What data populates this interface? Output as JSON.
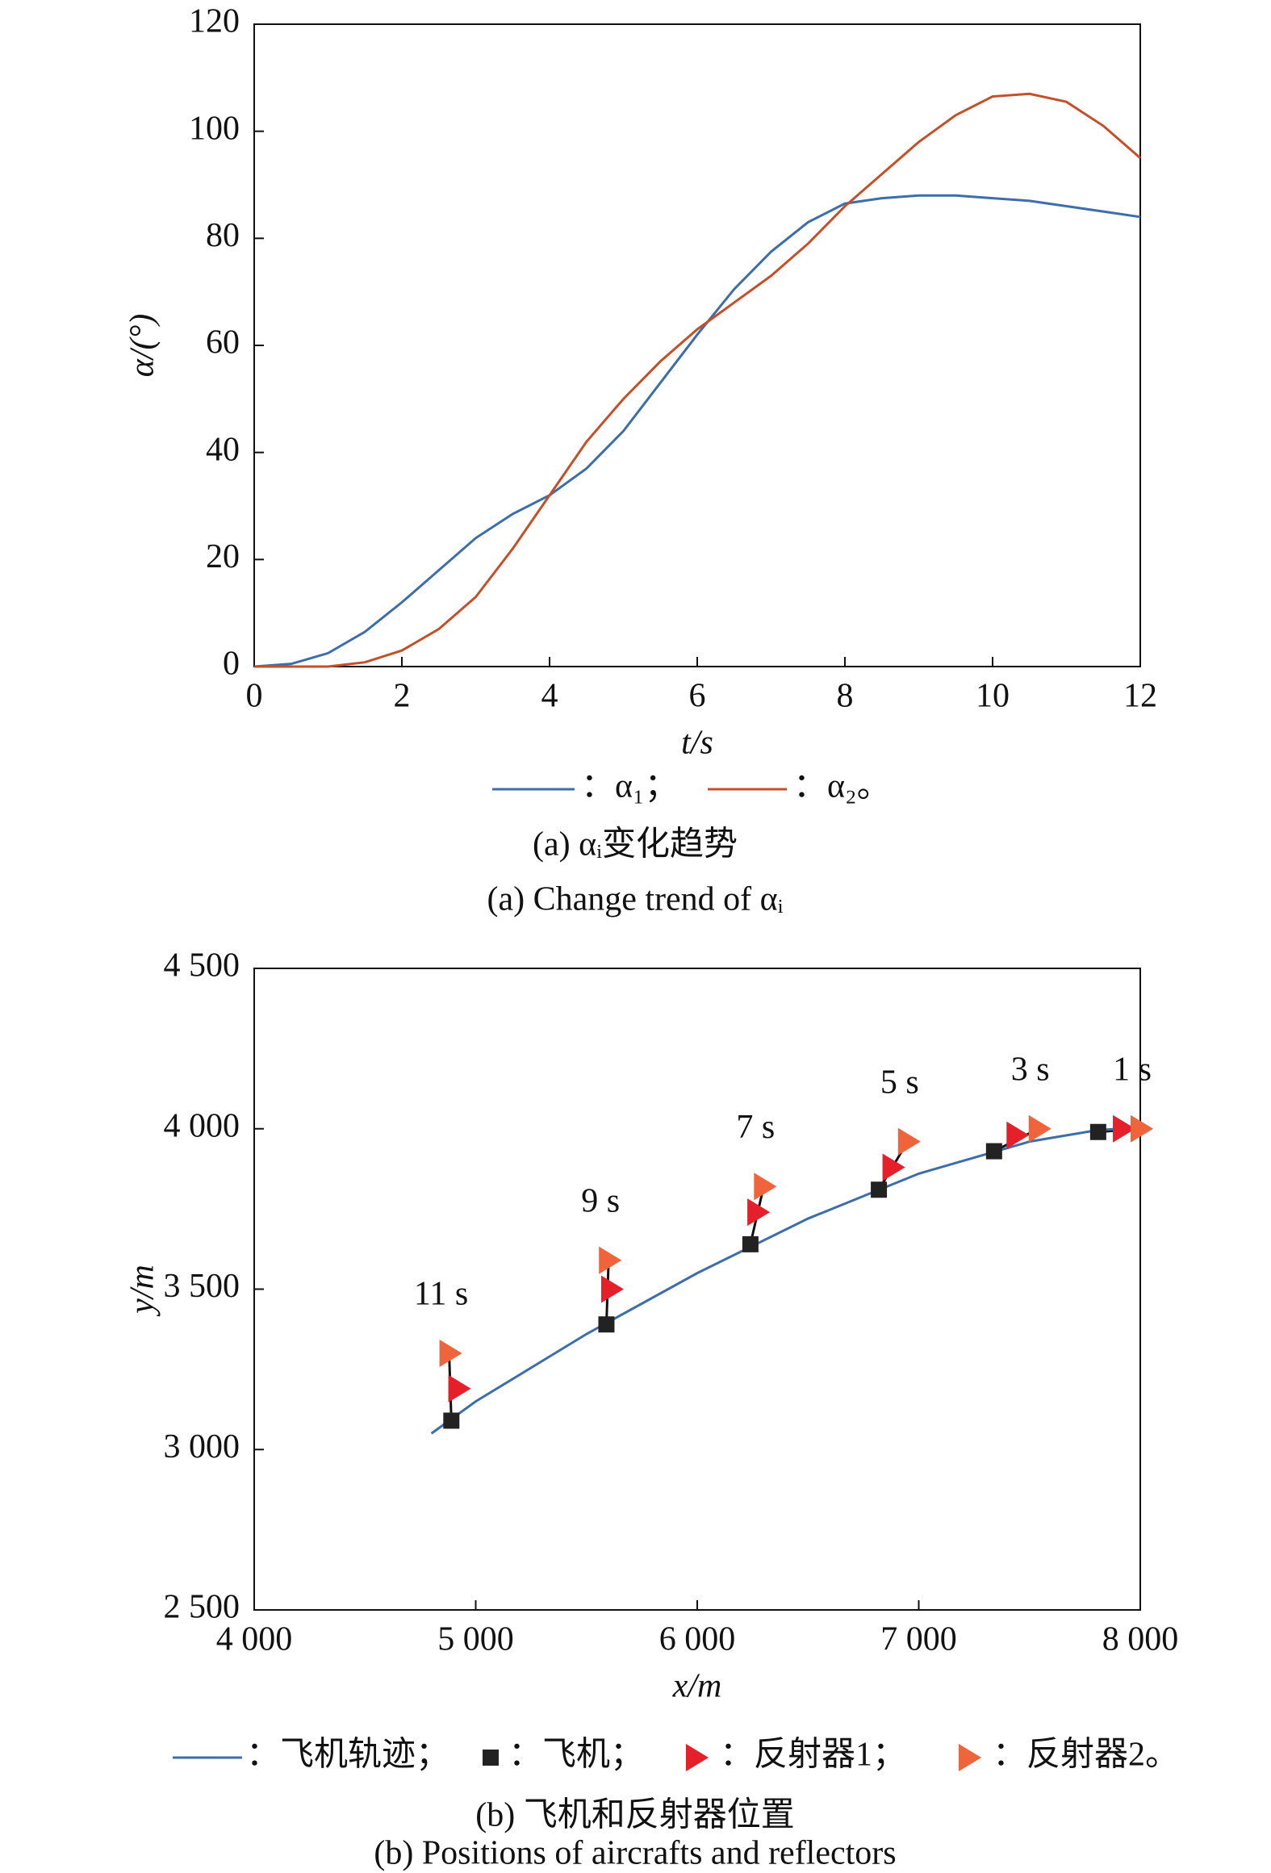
{
  "chart_data": [
    {
      "type": "line",
      "xlabel": "t/s",
      "ylabel": "α/(°)",
      "xlim": [
        0,
        12
      ],
      "xticks": [
        0,
        2,
        4,
        6,
        8,
        10,
        12
      ],
      "ylim": [
        0,
        120
      ],
      "yticks": [
        0,
        20,
        40,
        60,
        80,
        100,
        120
      ],
      "series": [
        {
          "name": "：α₁；",
          "color": "#3d6eaa",
          "x": [
            0,
            0.5,
            1,
            1.5,
            2,
            2.5,
            3,
            3.5,
            4,
            4.5,
            5,
            5.5,
            6,
            6.5,
            7,
            7.5,
            8,
            8.5,
            9,
            9.5,
            10,
            10.5,
            11,
            11.5,
            12
          ],
          "values": [
            0,
            0.5,
            2.5,
            6.5,
            12,
            18,
            24,
            28.5,
            32,
            37,
            44,
            53,
            62,
            70.5,
            77.5,
            83,
            86.5,
            87.5,
            88,
            88,
            87.5,
            87,
            86,
            85,
            84
          ]
        },
        {
          "name": "：α₂。",
          "color": "#c4502a",
          "x": [
            0,
            0.5,
            1,
            1.5,
            2,
            2.5,
            3,
            3.5,
            4,
            4.5,
            5,
            5.5,
            6,
            6.5,
            7,
            7.5,
            8,
            8.5,
            9,
            9.5,
            10,
            10.5,
            11,
            11.5,
            12
          ],
          "values": [
            0,
            0,
            0,
            0.8,
            3,
            7,
            13,
            22,
            32,
            42,
            50,
            57,
            63,
            68,
            73,
            79,
            86,
            92,
            98,
            103,
            106.5,
            107,
            105.5,
            101,
            95
          ]
        }
      ],
      "caption": "(a) αᵢ变化趋势",
      "caption_en": "(a) Change trend of αᵢ"
    },
    {
      "type": "combo",
      "xlabel": "x/m",
      "ylabel": "y/m",
      "xlim": [
        4000,
        8000
      ],
      "xticks": [
        {
          "value": 4000,
          "label": "4 000"
        },
        {
          "value": 5000,
          "label": "5 000"
        },
        {
          "value": 6000,
          "label": "6 000"
        },
        {
          "value": 7000,
          "label": "7 000"
        },
        {
          "value": 8000,
          "label": "8 000"
        }
      ],
      "ylim": [
        2500,
        4500
      ],
      "yticks": [
        {
          "value": 2500,
          "label": "2 500"
        },
        {
          "value": 3000,
          "label": "3 000"
        },
        {
          "value": 3500,
          "label": "3 500"
        },
        {
          "value": 4000,
          "label": "4 000"
        },
        {
          "value": 4500,
          "label": "4 500"
        }
      ],
      "series": [
        {
          "name": "：飞机轨迹；",
          "mark": "line",
          "color": "#3d6eaa",
          "x": [
            4800,
            5000,
            5500,
            6000,
            6500,
            7000,
            7500,
            7800,
            8000
          ],
          "values": [
            3050,
            3150,
            3360,
            3550,
            3720,
            3860,
            3960,
            3995,
            4005
          ]
        },
        {
          "name": "：飞机；",
          "mark": "square",
          "color": "#222222",
          "x": [
            4890,
            5590,
            6240,
            6820,
            7340,
            7810
          ],
          "values": [
            3090,
            3390,
            3640,
            3810,
            3930,
            3990
          ]
        },
        {
          "name": "：反射器1；",
          "mark": "triangle",
          "color": "#e5202a",
          "x": [
            4920,
            5610,
            6270,
            6880,
            7440,
            7920
          ],
          "values": [
            3190,
            3500,
            3740,
            3880,
            3980,
            4000
          ]
        },
        {
          "name": "：反射器2。",
          "mark": "triangle",
          "color": "#f0643c",
          "x": [
            4880,
            5600,
            6300,
            6950,
            7540,
            8000
          ],
          "values": [
            3300,
            3590,
            3820,
            3960,
            4000,
            4000
          ]
        }
      ],
      "time_labels": [
        "11 s",
        "9 s",
        "7 s",
        "5 s",
        "3 s",
        "1 s"
      ],
      "caption": "(b) 飞机和反射器位置",
      "caption_en": "(b) Positions of aircrafts and reflectors"
    }
  ]
}
